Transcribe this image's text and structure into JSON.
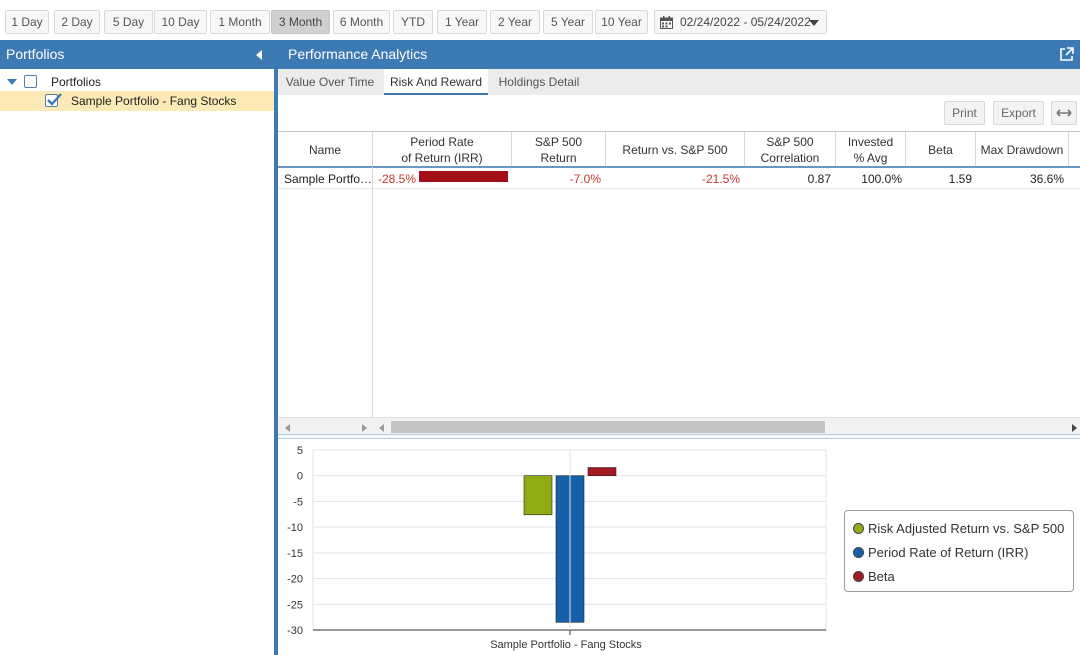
{
  "range_buttons": [
    {
      "label": "1 Day",
      "active": false
    },
    {
      "label": "2 Day",
      "active": false
    },
    {
      "label": "5 Day",
      "active": false
    },
    {
      "label": "10 Day",
      "active": false
    },
    {
      "label": "1 Month",
      "active": false
    },
    {
      "label": "3 Month",
      "active": true
    },
    {
      "label": "6 Month",
      "active": false
    },
    {
      "label": "YTD",
      "active": false
    },
    {
      "label": "1 Year",
      "active": false
    },
    {
      "label": "2 Year",
      "active": false
    },
    {
      "label": "5 Year",
      "active": false
    },
    {
      "label": "10 Year",
      "active": false
    }
  ],
  "date_range": "02/24/2022 - 05/24/2022",
  "left_panel": {
    "title": "Portfolios",
    "tree": {
      "root": {
        "label": "Portfolios",
        "checked": false,
        "expanded": true
      },
      "children": [
        {
          "label": "Sample Portfolio - Fang Stocks",
          "checked": true,
          "selected": true
        }
      ]
    }
  },
  "right_panel": {
    "title": "Performance Analytics",
    "tabs": [
      {
        "label": "Value Over Time",
        "active": false
      },
      {
        "label": "Risk And Reward",
        "active": true
      },
      {
        "label": "Holdings Detail",
        "active": false
      }
    ],
    "toolbar": {
      "print_label": "Print",
      "export_label": "Export"
    }
  },
  "grid": {
    "columns": [
      {
        "label": "Name"
      },
      {
        "label": "Period Rate\nof Return (IRR)"
      },
      {
        "label": "S&P 500\nReturn"
      },
      {
        "label": "Return vs. S&P 500"
      },
      {
        "label": "S&P 500\nCorrelation"
      },
      {
        "label": "Invested\n% Avg"
      },
      {
        "label": "Beta"
      },
      {
        "label": "Max Drawdown"
      }
    ],
    "rows": [
      {
        "name": "Sample Portfo…",
        "irr": "-28.5%",
        "sp500_return": "-7.0%",
        "return_vs_sp500": "-21.5%",
        "correlation": "0.87",
        "invested_avg": "100.0%",
        "beta": "1.59",
        "max_drawdown": "36.6%"
      }
    ]
  },
  "chart_data": {
    "type": "bar",
    "categories": [
      "Sample Portfolio - Fang Stocks"
    ],
    "series": [
      {
        "name": "Risk Adjusted Return vs. S&P 500",
        "values": [
          -7.6
        ],
        "color": "#8fac14"
      },
      {
        "name": "Period Rate of Return (IRR)",
        "values": [
          -28.5
        ],
        "color": "#1560a8"
      },
      {
        "name": "Beta",
        "values": [
          1.59
        ],
        "color": "#a31a23"
      }
    ],
    "ylim": [
      -30,
      5
    ],
    "yticks": [
      5,
      0,
      -5,
      -10,
      -15,
      -20,
      -25,
      -30
    ],
    "grid": true,
    "legend": "right"
  },
  "colors": {
    "accent": "#3d7ab3",
    "negative": "#c0392b",
    "selected_row": "#fbeab5"
  }
}
